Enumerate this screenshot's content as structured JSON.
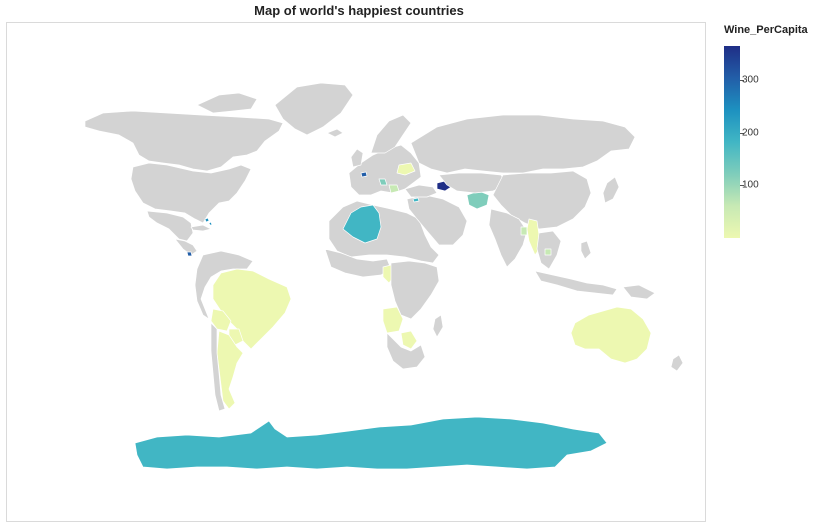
{
  "title": "Map of world's happiest countries",
  "legend": {
    "title": "Wine_PerCapita",
    "ticks": [
      {
        "value": 300,
        "label": "300"
      },
      {
        "value": 200,
        "label": "200"
      },
      {
        "value": 100,
        "label": "100"
      }
    ],
    "min": 0,
    "max": 365
  },
  "colors": {
    "no_data": "#d3d3d3",
    "border": "#ffffff",
    "scale": [
      "#1f2e86",
      "#225ea8",
      "#1d91c0",
      "#41b6c4",
      "#7fcdbb",
      "#c7e9b4",
      "#edf8b1"
    ]
  },
  "chart_data": {
    "type": "choropleth",
    "variable": "Wine_PerCapita",
    "regions": [
      {
        "name": "Antarctica",
        "value": 212
      },
      {
        "name": "Algeria",
        "value": 212
      },
      {
        "name": "Brazil",
        "value": 5
      },
      {
        "name": "Argentina",
        "value": 8
      },
      {
        "name": "Paraguay",
        "value": 5
      },
      {
        "name": "Bolivia",
        "value": 5
      },
      {
        "name": "Australia",
        "value": 10
      },
      {
        "name": "Afghanistan",
        "value": 130
      },
      {
        "name": "Myanmar",
        "value": 10
      },
      {
        "name": "Azerbaijan",
        "value": 350
      },
      {
        "name": "Belgium",
        "value": 320
      },
      {
        "name": "Croatia",
        "value": 120
      },
      {
        "name": "Belarus",
        "value": 10
      },
      {
        "name": "Cyprus",
        "value": 200
      },
      {
        "name": "Bahamas",
        "value": 230
      },
      {
        "name": "Costa Rica",
        "value": 250
      },
      {
        "name": "Angola",
        "value": 10
      },
      {
        "name": "Botswana",
        "value": 10
      },
      {
        "name": "Cameroon",
        "value": 10
      },
      {
        "name": "Bangladesh",
        "value": 60
      },
      {
        "name": "Cambodia",
        "value": 20
      }
    ]
  }
}
